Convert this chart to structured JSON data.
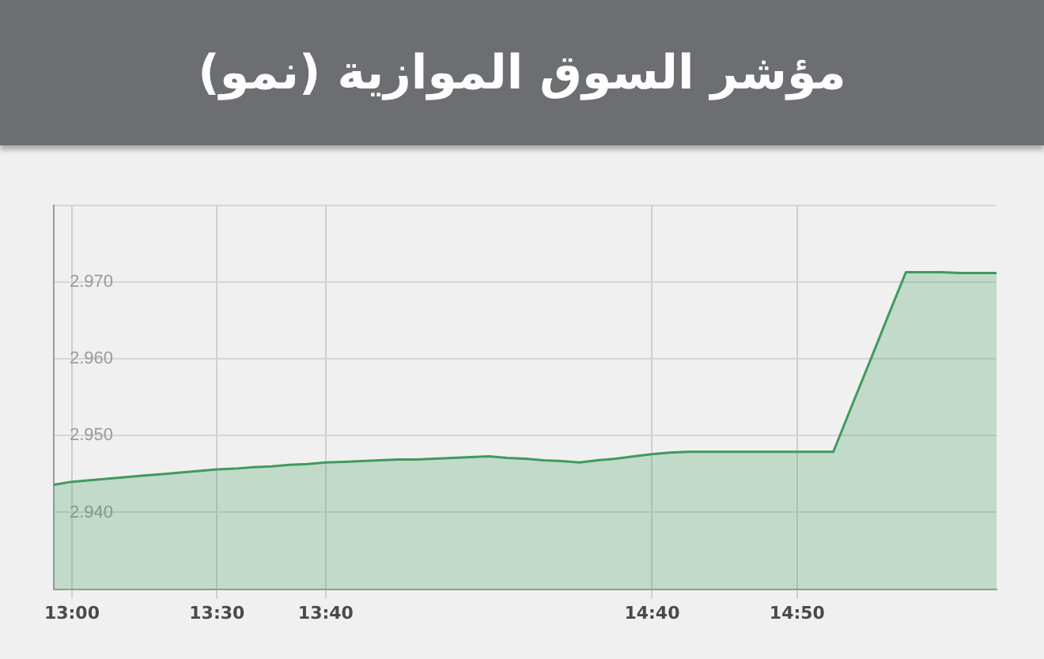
{
  "chart_data": {
    "type": "area",
    "title": "مؤشر السوق الموازية (نمو)",
    "categories": [
      null,
      "13:00",
      null,
      null,
      null,
      null,
      null,
      null,
      null,
      "13:30",
      null,
      null,
      null,
      null,
      null,
      "13:40",
      null,
      null,
      null,
      null,
      null,
      null,
      null,
      null,
      null,
      null,
      null,
      null,
      null,
      null,
      null,
      null,
      null,
      "14:40",
      null,
      null,
      null,
      null,
      null,
      null,
      null,
      "14:50",
      null,
      null,
      null,
      null,
      null,
      null,
      null,
      null,
      null,
      null,
      null
    ],
    "series": [
      {
        "color": "#3f9a5e",
        "values": [
          2.9436,
          2.944,
          2.9442,
          2.9444,
          2.9446,
          2.9448,
          2.945,
          2.9452,
          2.9454,
          2.9456,
          2.9457,
          2.9459,
          2.946,
          2.9462,
          2.9463,
          2.9465,
          2.9466,
          2.9467,
          2.9468,
          2.9469,
          2.9469,
          2.947,
          2.9471,
          2.9472,
          2.9473,
          2.9471,
          2.947,
          2.9468,
          2.9467,
          2.9465,
          2.9468,
          2.947,
          2.9473,
          2.9476,
          2.9478,
          2.9479,
          2.9479,
          2.9479,
          2.9479,
          2.9479,
          2.9479,
          2.9479,
          2.9479,
          2.9479,
          2.9538,
          2.9596,
          2.9655,
          2.9713,
          2.9713,
          2.9713,
          2.9712,
          2.9712,
          2.9712
        ]
      }
    ],
    "ylim": [
      2.93,
      2.98
    ],
    "yticks": [
      {
        "value": 2.93,
        "label": null
      },
      {
        "value": 2.94,
        "label": "2.940"
      },
      {
        "value": 2.95,
        "label": "2.950"
      },
      {
        "value": 2.96,
        "label": "2.960"
      },
      {
        "value": 2.97,
        "label": "2.970"
      },
      {
        "value": 2.98,
        "label": null
      }
    ],
    "grid": true,
    "legend": false,
    "marker": "none",
    "line_style": "solid"
  }
}
